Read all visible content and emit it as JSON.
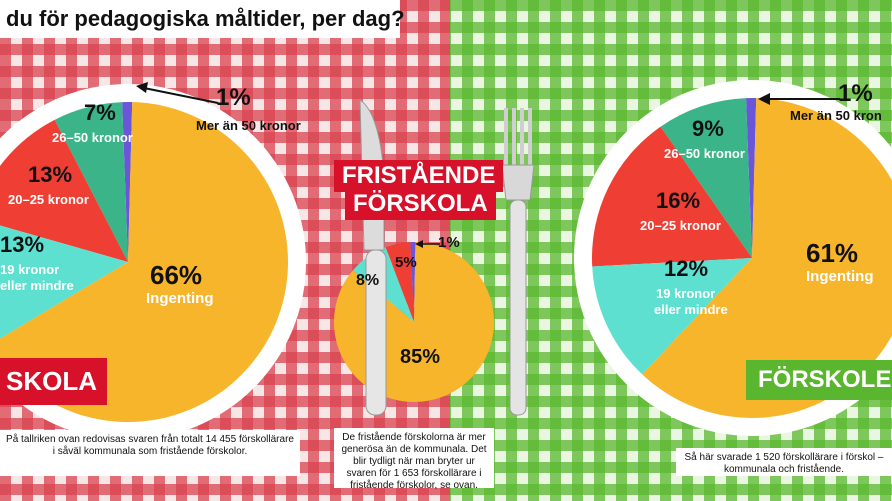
{
  "title": "du för pedagogiska måltider, per dag?",
  "labels": {
    "left_pie": {
      "over50_pct": "1%",
      "over50_text": "Mer än 50 kronor",
      "s26_50_pct": "7%",
      "s26_50_text": "26–50 kronor",
      "s20_25_pct": "13%",
      "s20_25_text": "20–25 kronor",
      "s19_pct": "13%",
      "s19_text_1": "19 kronor",
      "s19_text_2": "eller mindre",
      "none_pct": "66%",
      "none_text": "Ingenting",
      "tag": "SKOLA"
    },
    "middle_pie": {
      "heading_1": "FRISTÅENDE",
      "heading_2": "FÖRSKOLA",
      "p1": "1%",
      "p5": "5%",
      "p8": "8%",
      "p85": "85%"
    },
    "right_pie": {
      "over50_pct": "1%",
      "over50_text": "Mer än 50 kron",
      "s26_50_pct": "9%",
      "s26_50_text": "26–50 kronor",
      "s20_25_pct": "16%",
      "s20_25_text": "20–25 kronor",
      "s19_pct": "12%",
      "s19_text_1": "19 kronor",
      "s19_text_2": "eller mindre",
      "none_pct": "61%",
      "none_text": "Ingenting",
      "tag": "FÖRSKOLE"
    }
  },
  "notes": {
    "left": "På tallriken ovan redovisas svaren från totalt 14 455 förskollärare i såväl kommunala som fristående förskolor.",
    "middle": "De fristående förskolorna är mer generösa än de kommunala. Det blir tydligt när man bryter ur svaren för 1 653 förskollärare i fristående förskolor, se ovan.",
    "right": "Så här svarade 1 520 förskollärare i förskol – kommunala och fristående."
  },
  "colors": {
    "none": "#f7b52b",
    "s19": "#5ee0d0",
    "s20_25": "#ef3e33",
    "s26_50": "#3cb48a",
    "over50": "#6b55d8",
    "red_check": "#c8102e",
    "green_check": "#59b82f"
  },
  "chart_data": [
    {
      "type": "pie",
      "categories": [
        "Ingenting",
        "19 kronor eller mindre",
        "20–25 kronor",
        "26–50 kronor",
        "Mer än 50 kronor"
      ],
      "values": [
        66,
        13,
        13,
        7,
        1
      ]
    },
    {
      "type": "pie",
      "title": "FRISTÅENDE FÖRSKOLA",
      "categories": [
        "Ingenting",
        "19 kronor eller mindre",
        "20–25 kronor",
        "26–50 kronor",
        "Mer än 50 kronor"
      ],
      "values": [
        85,
        8,
        5,
        0,
        1
      ]
    },
    {
      "type": "pie",
      "categories": [
        "Ingenting",
        "19 kronor eller mindre",
        "20–25 kronor",
        "26–50 kronor",
        "Mer än 50 kronor"
      ],
      "values": [
        61,
        12,
        16,
        9,
        1
      ]
    }
  ]
}
